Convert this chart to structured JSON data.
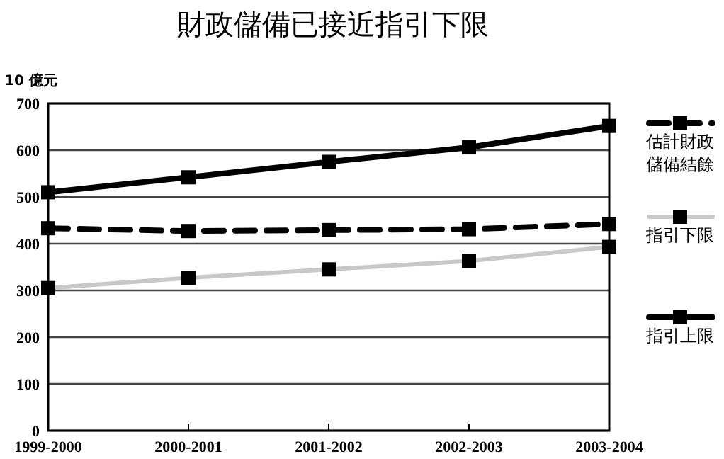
{
  "chart_data": {
    "type": "line",
    "title": "財政儲備已接近指引下限",
    "ylabel": "10 億元",
    "categories": [
      "1999-2000",
      "2000-2001",
      "2001-2002",
      "2002-2003",
      "2003-2004"
    ],
    "series": [
      {
        "name": "估計財政儲備結餘",
        "color": "#000000",
        "line_style": "dashed",
        "values": [
          433,
          427,
          429,
          431,
          442
        ]
      },
      {
        "name": "指引下限",
        "color": "#c8c8c8",
        "line_style": "solid",
        "values": [
          305,
          327,
          345,
          363,
          393
        ]
      },
      {
        "name": "指引上限",
        "color": "#000000",
        "line_style": "solid",
        "values": [
          510,
          542,
          575,
          606,
          652
        ]
      }
    ],
    "ylim": [
      0,
      700
    ],
    "yticks": [
      0,
      100,
      200,
      300,
      400,
      500,
      600,
      700
    ],
    "grid": "y",
    "legend": "right",
    "marker": "square"
  }
}
